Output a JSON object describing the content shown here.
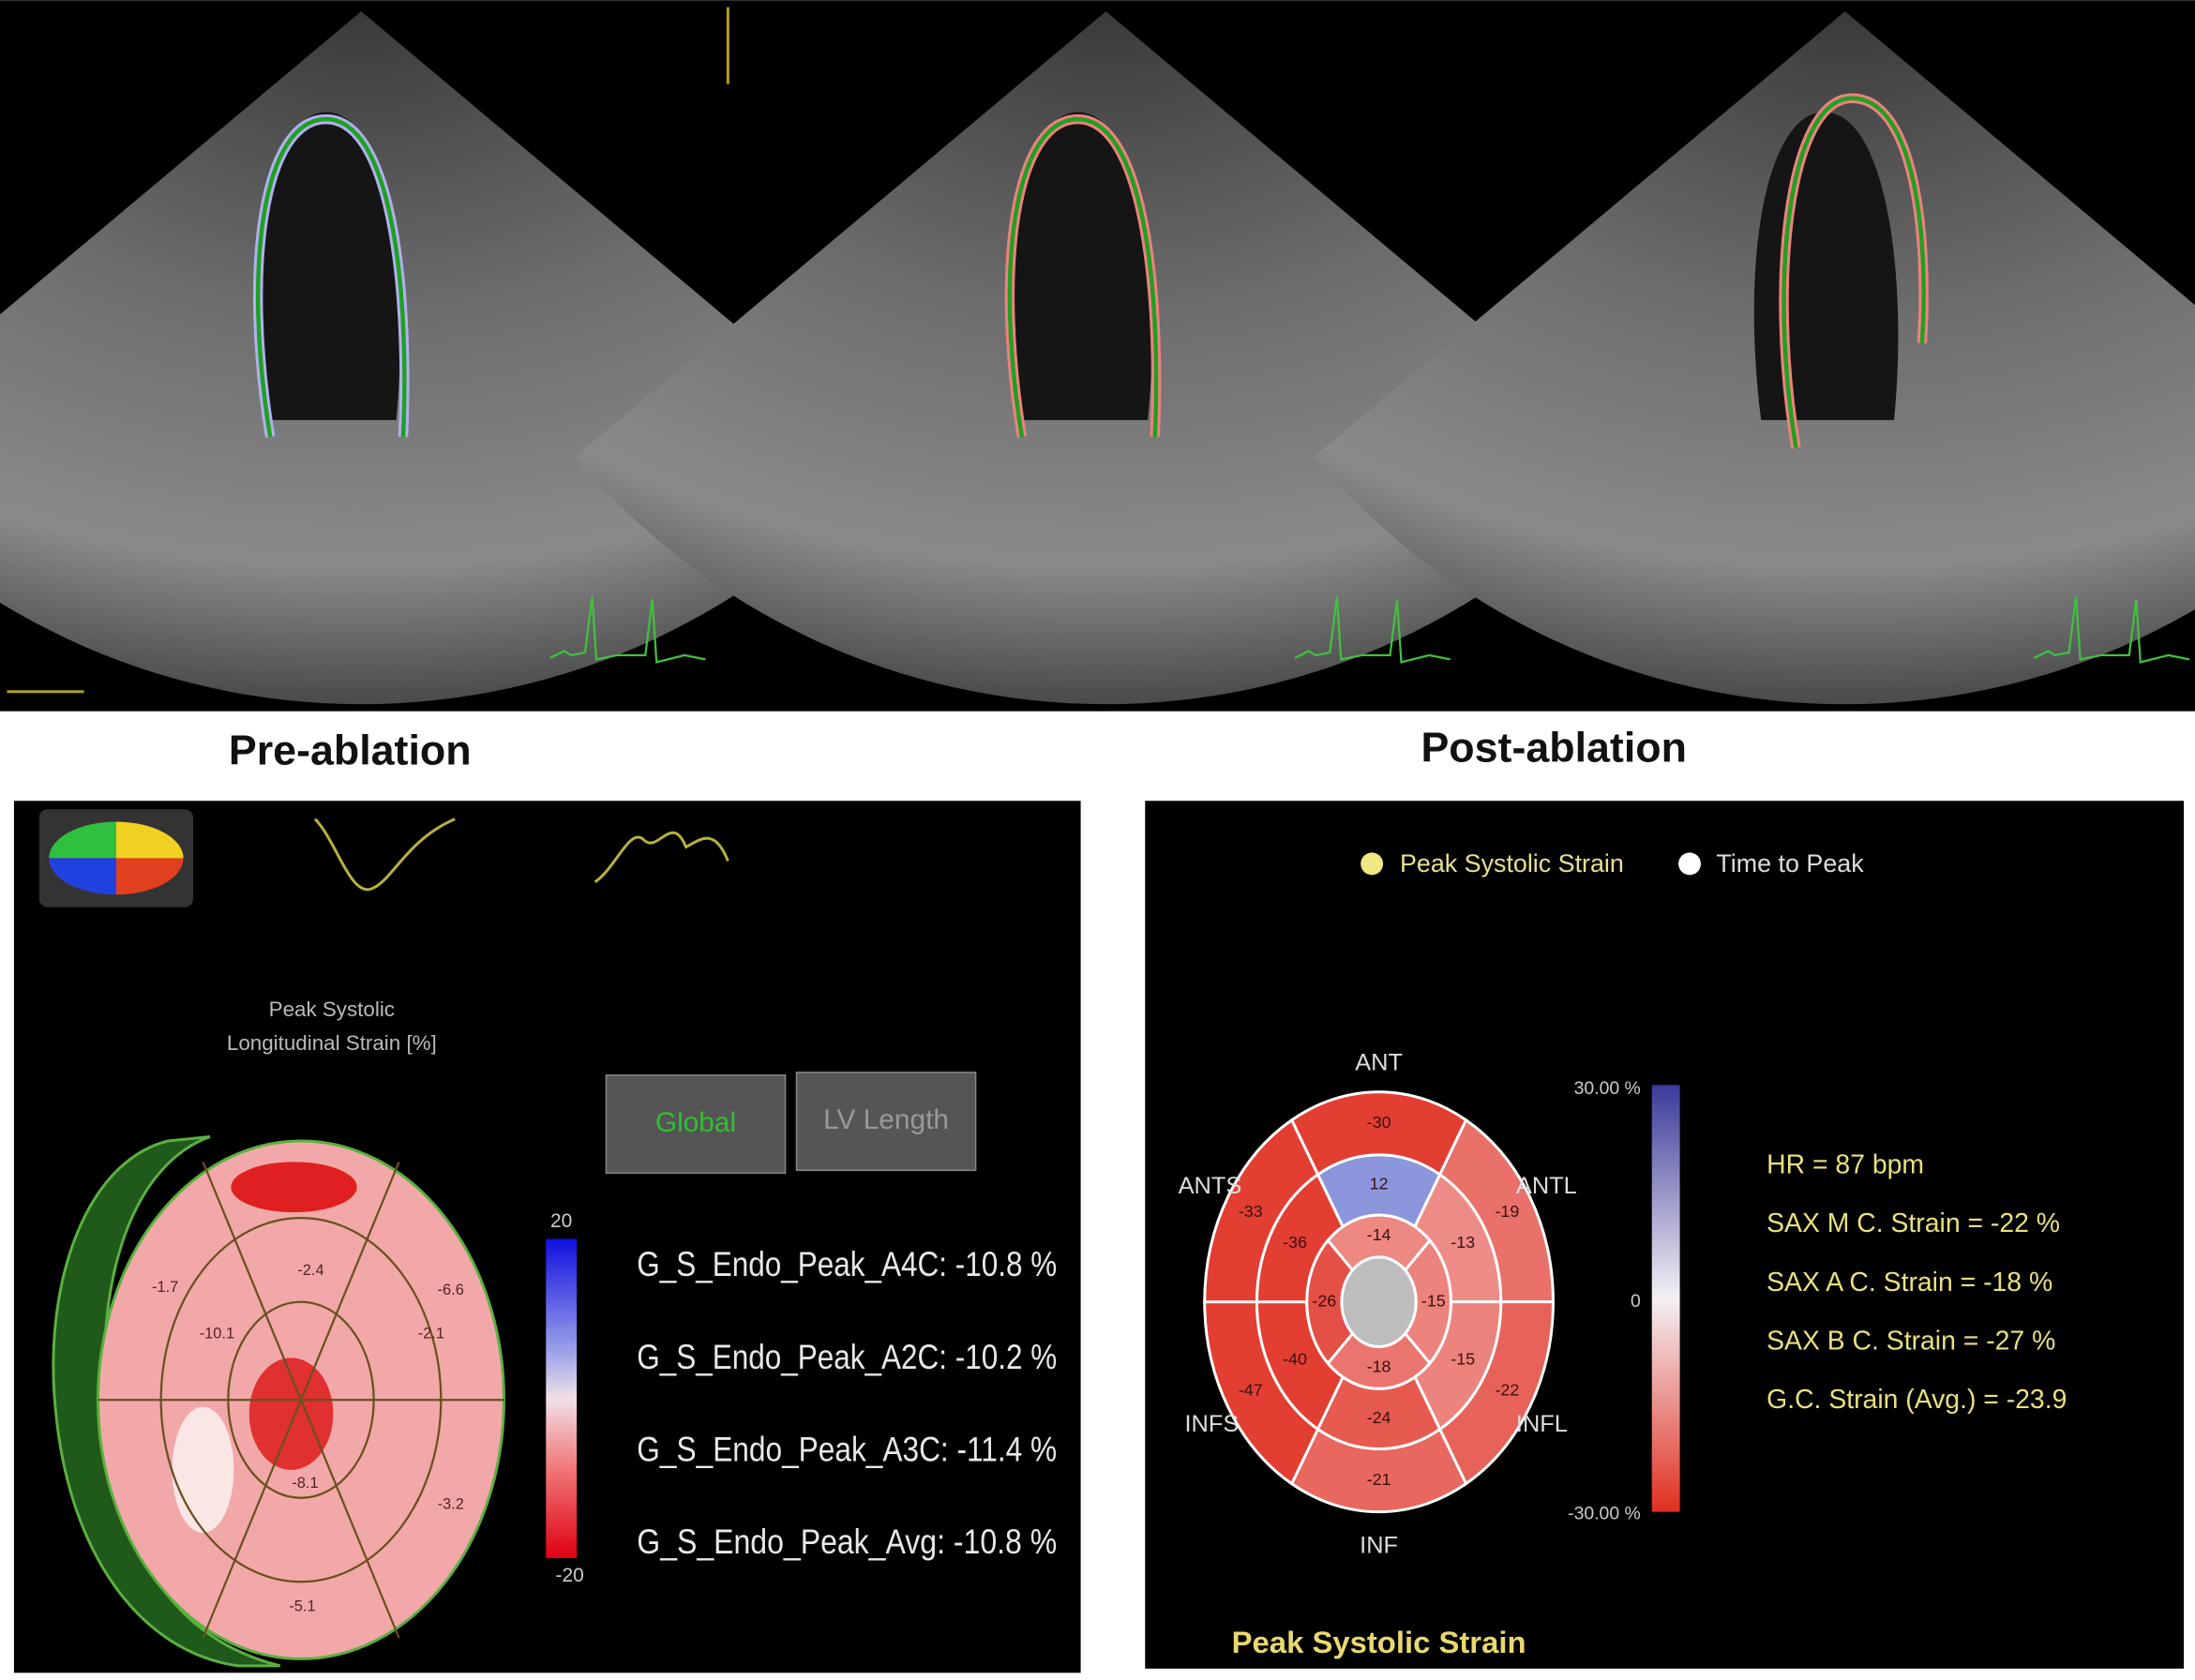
{
  "figure": {
    "ultrasound": {
      "labels": [
        "Pre-ablation",
        "Post-ablation"
      ]
    },
    "pre": {
      "title_lines": [
        "Peak Systolic",
        "Longitudinal Strain [%]"
      ],
      "buttons": [
        "Global",
        "LV Length"
      ],
      "scale": [
        20,
        -20
      ],
      "segments": [
        -1.7,
        -2.4,
        -6.6,
        -10.1,
        -2.1,
        -8.1,
        -5.1,
        -3.2
      ],
      "measurements": [
        "G_S_Endo_Peak_A4C:  -10.8 %",
        "G_S_Endo_Peak_A2C:  -10.2 %",
        "G_S_Endo_Peak_A3C:  -11.4 %",
        "G_S_Endo_Peak_Avg:  -10.8 %"
      ]
    },
    "post": {
      "legend": [
        "Peak Systolic Strain",
        "Time to Peak"
      ],
      "walls": [
        "ANT",
        "ANTL",
        "INFL",
        "INF",
        "INFS",
        "ANTS"
      ],
      "basal": [
        -30,
        -19,
        -22,
        -21,
        -47,
        -33
      ],
      "mid": [
        12,
        -13,
        -15,
        -24,
        -40,
        -36
      ],
      "apical": [
        -14,
        -15,
        -18,
        -26
      ],
      "scale": [
        "30.00 %",
        0,
        "-30.00 %"
      ],
      "stats": [
        "HR = 87 bpm",
        "SAX M C. Strain = -22 %",
        "SAX A C. Strain = -18 %",
        "SAX B C. Strain = -27 %",
        "G.C. Strain (Avg.) = -23.9"
      ],
      "caption": "Peak Systolic Strain"
    }
  }
}
